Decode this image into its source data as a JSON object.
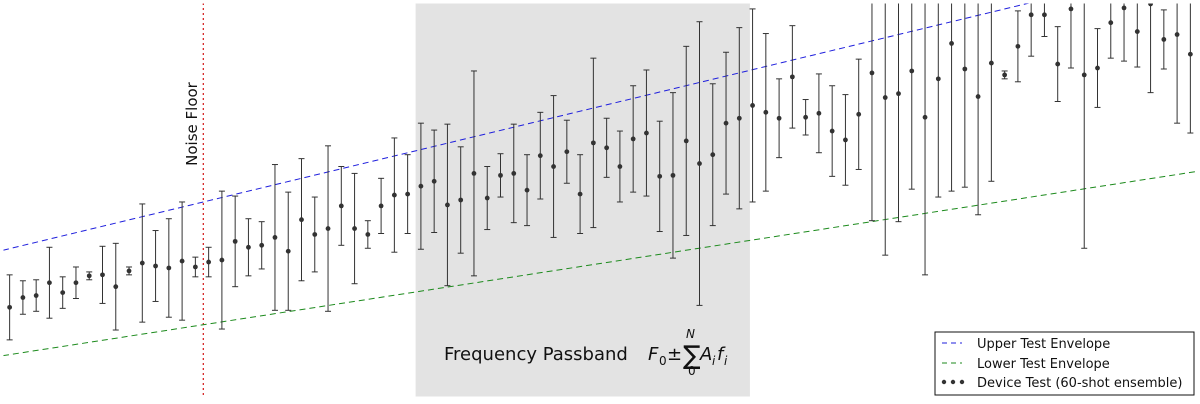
{
  "chart_data": {
    "type": "scatter",
    "title": "",
    "xlabel": "",
    "ylabel": "",
    "xlim": [
      0,
      90
    ],
    "ylim": [
      0,
      400
    ],
    "grid": false,
    "legend_position": "bottom-right",
    "annotations": {
      "noise_floor": {
        "label": "Noise Floor",
        "x": 15.1,
        "color": "#d62728"
      },
      "passband": {
        "label": "Frequency Passband",
        "x_start": 31.1,
        "x_end": 56.3,
        "fill": "#e3e3e3"
      }
    },
    "series": [
      {
        "name": "Upper Test Envelope",
        "kind": "line",
        "style": "dashed",
        "color": "#1f1fdd",
        "x": [
          0,
          90
        ],
        "y": [
          149,
          441
        ]
      },
      {
        "name": "Lower Test Envelope",
        "kind": "line",
        "style": "dashed",
        "color": "#1c8a1c",
        "x": [
          0,
          90
        ],
        "y": [
          42,
          229
        ]
      },
      {
        "name": "Device Test (60-shot ensemble)",
        "kind": "errorbar",
        "color": "#333333",
        "x": [
          0.5,
          1.5,
          2.5,
          3.5,
          4.5,
          5.5,
          6.5,
          7.5,
          8.5,
          9.5,
          10.5,
          11.5,
          12.5,
          13.5,
          14.5,
          15.5,
          16.5,
          17.5,
          18.5,
          19.5,
          20.5,
          21.5,
          22.5,
          23.5,
          24.5,
          25.5,
          26.5,
          27.5,
          28.5,
          29.5,
          30.5,
          31.5,
          32.5,
          33.5,
          34.5,
          35.5,
          36.5,
          37.5,
          38.5,
          39.5,
          40.5,
          41.5,
          42.5,
          43.5,
          44.5,
          45.5,
          46.5,
          47.5,
          48.5,
          49.5,
          50.5,
          51.5,
          52.5,
          53.5,
          54.5,
          55.5,
          56.5,
          57.5,
          58.5,
          59.5,
          60.5,
          61.5,
          62.5,
          63.5,
          64.5,
          65.5,
          66.5,
          67.5,
          68.5,
          69.5,
          70.5,
          71.5,
          72.5,
          73.5,
          74.5,
          75.5,
          76.5,
          77.5,
          78.5,
          79.5,
          80.5,
          81.5,
          82.5,
          83.5,
          84.5,
          85.5,
          86.5,
          87.5,
          88.5,
          89.5
        ],
        "y": [
          91,
          101,
          103,
          116,
          106,
          116,
          123,
          124,
          112,
          128,
          136,
          133,
          131,
          138,
          132,
          137,
          139,
          158,
          152,
          154,
          162,
          148,
          180,
          165,
          171,
          194,
          171,
          165,
          194,
          205,
          206,
          214,
          219,
          195,
          200,
          227,
          202,
          225,
          227,
          210,
          245,
          234,
          249,
          206,
          258,
          253,
          234,
          262,
          268,
          224,
          225,
          260,
          237,
          246,
          278,
          283,
          296,
          289,
          283,
          325,
          284,
          288,
          270,
          261,
          287,
          329,
          304,
          308,
          331,
          284,
          323,
          359,
          333,
          305,
          339,
          327,
          356,
          388,
          388,
          338,
          394,
          327,
          334,
          380,
          395,
          371,
          399,
          363,
          368,
          348
        ],
        "err": [
          33,
          17,
          16,
          36,
          16,
          16,
          4,
          29,
          44,
          4,
          60,
          36,
          50,
          60,
          10,
          15,
          70,
          46,
          29,
          24,
          74,
          60,
          62,
          38,
          84,
          40,
          56,
          14,
          28,
          58,
          40,
          64,
          52,
          82,
          54,
          104,
          32,
          22,
          50,
          36,
          44,
          72,
          32,
          40,
          86,
          30,
          36,
          54,
          64,
          56,
          84,
          96,
          144,
          72,
          72,
          92,
          98,
          80,
          40,
          52,
          18,
          40,
          46,
          46,
          56,
          150,
          160,
          130,
          120,
          160,
          120,
          150,
          120,
          120,
          120,
          4,
          36,
          42,
          22,
          38,
          60,
          176,
          40,
          36,
          54,
          36,
          90,
          30,
          90,
          80
        ]
      }
    ],
    "legend": [
      {
        "label": "Upper Test Envelope"
      },
      {
        "label": "Lower Test Envelope"
      },
      {
        "label": "Device Test (60-shot ensemble)"
      }
    ]
  }
}
